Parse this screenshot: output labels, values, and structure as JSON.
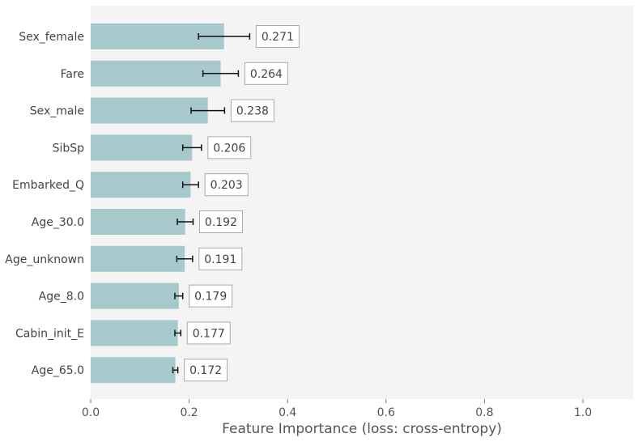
{
  "chart_data": {
    "type": "bar",
    "orientation": "horizontal",
    "title": "",
    "xlabel": "Feature Importance (loss: cross-entropy)",
    "ylabel": "",
    "xlim": [
      0.0,
      1.1
    ],
    "xticks": [
      "0.0",
      "0.2",
      "0.4",
      "0.6",
      "0.8",
      "1.0"
    ],
    "grid": false,
    "categories": [
      "Sex_female",
      "Fare",
      "Sex_male",
      "SibSp",
      "Embarked_Q",
      "Age_30.0",
      "Age_unknown",
      "Age_8.0",
      "Cabin_init_E",
      "Age_65.0"
    ],
    "values": [
      0.271,
      0.264,
      0.238,
      0.206,
      0.203,
      0.192,
      0.191,
      0.179,
      0.177,
      0.172
    ],
    "value_labels": [
      "0.271",
      "0.264",
      "0.238",
      "0.206",
      "0.203",
      "0.192",
      "0.191",
      "0.179",
      "0.177",
      "0.172"
    ],
    "errors": [
      0.052,
      0.036,
      0.034,
      0.019,
      0.016,
      0.016,
      0.016,
      0.008,
      0.006,
      0.005
    ],
    "colors": {
      "bar": "#a8c9cc",
      "plot_background": "#f4f4f4",
      "error_bar": "#111111",
      "label_box_border": "#aaaaaa"
    }
  }
}
